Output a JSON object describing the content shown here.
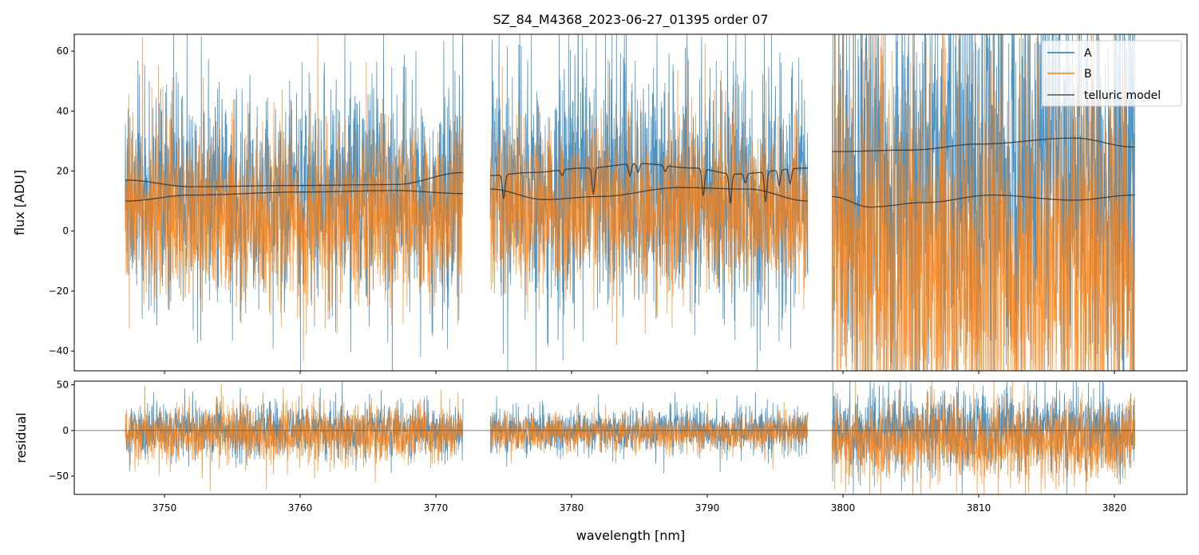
{
  "chart_data": {
    "type": "line",
    "title": "SZ_84_M4368_2023-06-27_01395  order 07",
    "xlabel": "wavelength [nm]",
    "panels": [
      {
        "name": "flux",
        "ylabel": "flux [ADU]",
        "ylim": [
          -46.6,
          65.6
        ],
        "yticks": [
          -40,
          -20,
          0,
          20,
          40,
          60
        ]
      },
      {
        "name": "residual",
        "ylabel": "residual",
        "ylim": [
          -70,
          54
        ],
        "yticks": [
          -50,
          0,
          50
        ]
      }
    ],
    "xlim": [
      3743.35,
      3825.35
    ],
    "xticks": [
      3750,
      3760,
      3770,
      3780,
      3790,
      3800,
      3810,
      3820
    ],
    "legend": {
      "placement": "top-right",
      "entries": [
        "A",
        "B",
        "telluric model"
      ]
    },
    "colors": {
      "A": "#1f77b4",
      "B": "#ff7f0e",
      "model": "#333333"
    },
    "segments": [
      {
        "range": [
          3747.1,
          3772.0
        ],
        "A": {
          "mean": 12,
          "sigma": 17
        },
        "B": {
          "mean": 5,
          "sigma": 14
        },
        "resA": {
          "sigma": 14
        },
        "resB": {
          "sigma": 16,
          "mean": -4
        },
        "model_upper": [
          [
            3747.1,
            17
          ],
          [
            3752,
            14.8
          ],
          [
            3760,
            15.2
          ],
          [
            3767,
            15.5
          ],
          [
            3772,
            19.5
          ]
        ],
        "model_lower": [
          [
            3747.1,
            10
          ],
          [
            3752,
            12
          ],
          [
            3760,
            13
          ],
          [
            3767,
            13.5
          ],
          [
            3772,
            12.5
          ]
        ],
        "dips": []
      },
      {
        "range": [
          3774.0,
          3797.4
        ],
        "A": {
          "mean": 14,
          "sigma": 19
        },
        "B": {
          "mean": 7,
          "sigma": 13
        },
        "resA": {
          "sigma": 12
        },
        "resB": {
          "sigma": 10,
          "mean": -3
        },
        "model_upper": [
          [
            3774,
            18.5
          ],
          [
            3777,
            19.5
          ],
          [
            3781,
            21
          ],
          [
            3785,
            22.5
          ],
          [
            3789,
            21
          ],
          [
            3792,
            19
          ],
          [
            3797.4,
            21
          ]
        ],
        "model_lower": [
          [
            3774,
            14
          ],
          [
            3778,
            10.5
          ],
          [
            3782,
            11.5
          ],
          [
            3788,
            14.5
          ],
          [
            3793,
            14
          ],
          [
            3797.4,
            10
          ]
        ],
        "dips": [
          [
            3775.0,
            8
          ],
          [
            3779.3,
            2
          ],
          [
            3781.6,
            9
          ],
          [
            3784.3,
            4
          ],
          [
            3784.9,
            3
          ],
          [
            3786.9,
            2
          ],
          [
            3789.7,
            9
          ],
          [
            3791.7,
            10
          ],
          [
            3792.8,
            3
          ],
          [
            3794.3,
            10
          ],
          [
            3795.3,
            5
          ],
          [
            3796.1,
            5
          ]
        ]
      },
      {
        "range": [
          3799.2,
          3821.5
        ],
        "A": {
          "mean": 18,
          "sigma": 34
        },
        "B": {
          "mean": -12,
          "sigma": 32
        },
        "resA": {
          "sigma": 22
        },
        "resB": {
          "sigma": 22,
          "mean": -12
        },
        "model_upper": [
          [
            3799.2,
            26.5
          ],
          [
            3805,
            27
          ],
          [
            3810,
            29
          ],
          [
            3817,
            31
          ],
          [
            3821.5,
            28
          ]
        ],
        "model_lower": [
          [
            3799.2,
            11.5
          ],
          [
            3802,
            8
          ],
          [
            3806,
            9.5
          ],
          [
            3811,
            12
          ],
          [
            3817,
            10.3
          ],
          [
            3821.5,
            12
          ]
        ],
        "dips": []
      }
    ]
  }
}
